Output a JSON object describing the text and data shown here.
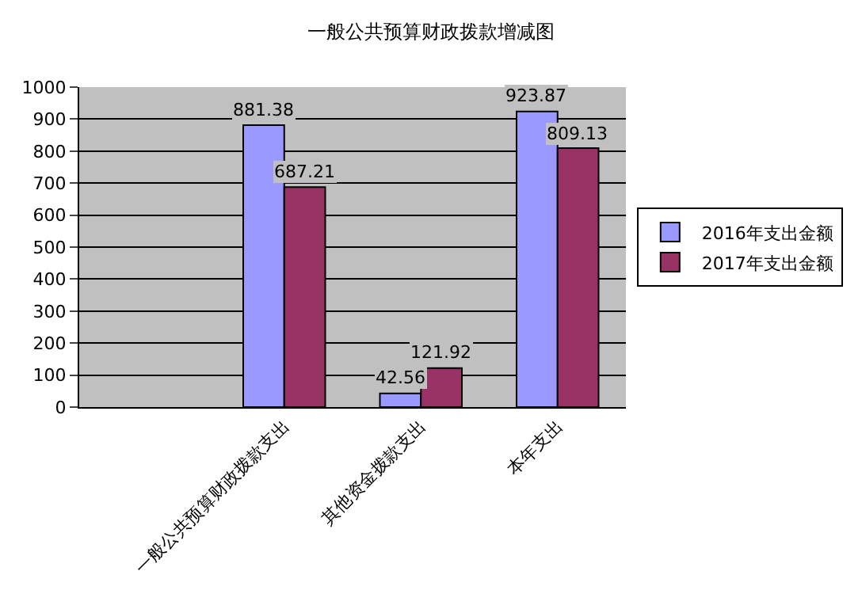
{
  "chart_data": {
    "type": "bar",
    "title": "一般公共预算财政拨款增减图",
    "categories": [
      null,
      "一般公共预算财政拨款支出",
      "其他资金拨款支出",
      "本年支出"
    ],
    "series": [
      {
        "name": "2016年支出金额",
        "color": "#9999ff",
        "values": [
          null,
          881.38,
          42.56,
          923.87
        ]
      },
      {
        "name": "2017年支出金额",
        "color": "#993366",
        "values": [
          null,
          687.21,
          121.92,
          809.13
        ]
      }
    ],
    "ylim": [
      0,
      1000
    ],
    "yticks": [
      0,
      100,
      200,
      300,
      400,
      500,
      600,
      700,
      800,
      900,
      1000
    ],
    "grid": "y",
    "legend": "right",
    "data_labels": true
  }
}
